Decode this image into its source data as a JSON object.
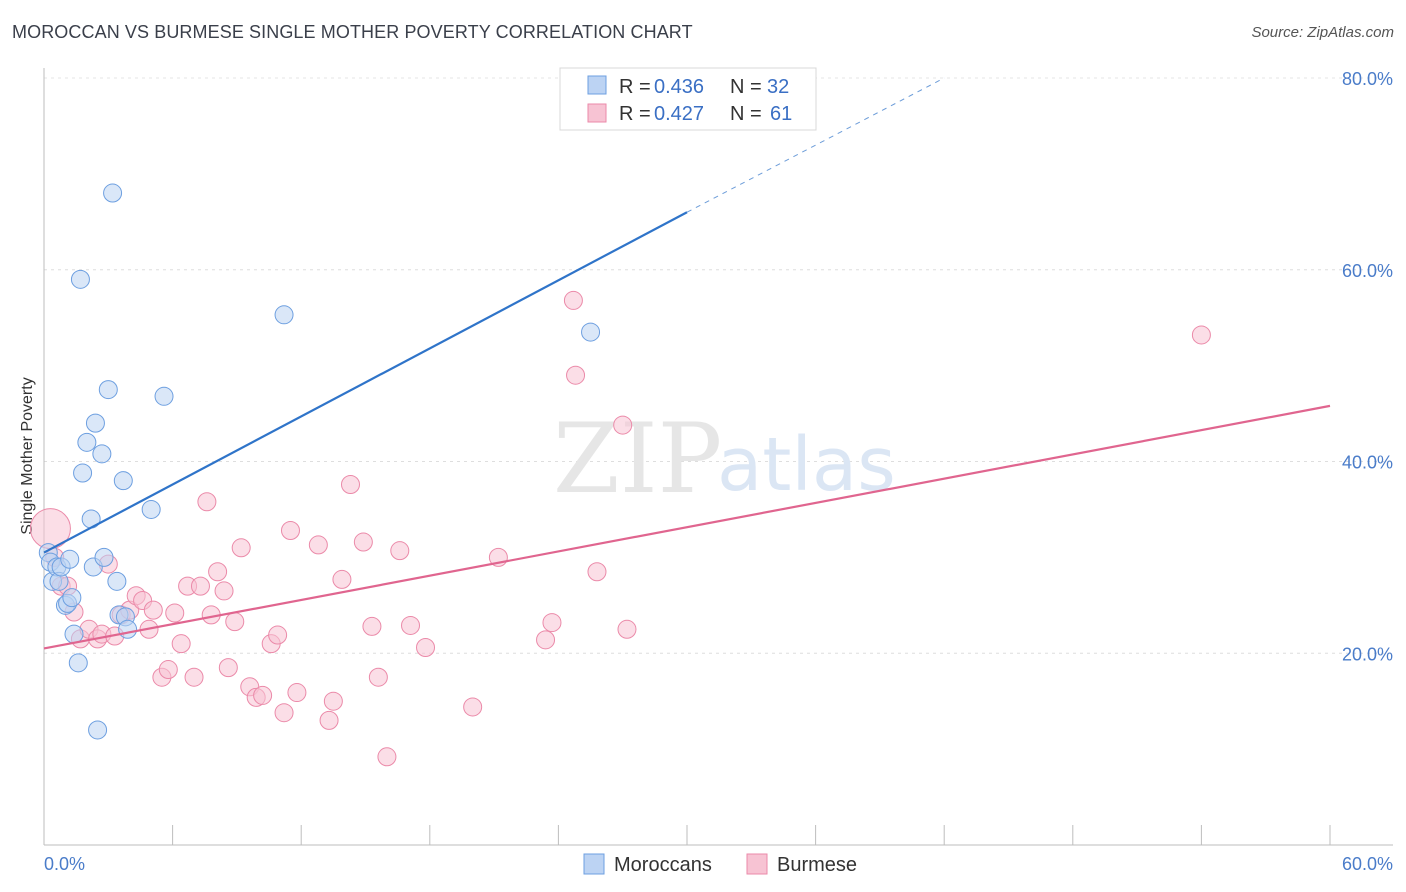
{
  "title": "MOROCCAN VS BURMESE SINGLE MOTHER POVERTY CORRELATION CHART",
  "source": "Source: ZipAtlas.com",
  "watermark": {
    "zip": "ZIP",
    "atlas": "atlas"
  },
  "colors": {
    "moroccans": "#6d9fe0",
    "moroccans_fill": "#bcd3f3",
    "moroccans_line": "#2f74c9",
    "burmese": "#eb8aa9",
    "burmese_fill": "#f7c3d3",
    "burmese_line": "#e0658f"
  },
  "legend": {
    "rows": [
      {
        "r_label": "R = ",
        "r_value": "0.436",
        "n_label": "N = ",
        "n_value": "32"
      },
      {
        "r_label": "R = ",
        "r_value": "0.427",
        "n_label": "N = ",
        "n_value": "61"
      }
    ]
  },
  "chart_data": {
    "type": "scatter",
    "title": "MOROCCAN VS BURMESE SINGLE MOTHER POVERTY CORRELATION CHART",
    "xlabel": "",
    "ylabel": "Single Mother Poverty",
    "xlim": [
      0,
      60
    ],
    "ylim": [
      0,
      80
    ],
    "x_tick_labels": [
      "0.0%",
      "60.0%"
    ],
    "y_ticks": [
      20,
      40,
      60,
      80
    ],
    "y_tick_labels": [
      "20.0%",
      "40.0%",
      "60.0%",
      "80.0%"
    ],
    "grid": true,
    "legend_position": "top-center",
    "series": [
      {
        "name": "Moroccans",
        "r": 0.436,
        "n": 32,
        "trend": {
          "x1": 0,
          "y1": 30.5,
          "x2": 30,
          "y2": 66,
          "dashed_to_x": 42,
          "dashed_to_y": 80
        },
        "points": [
          [
            0.2,
            30.5
          ],
          [
            0.3,
            29.5
          ],
          [
            0.4,
            27.5
          ],
          [
            0.6,
            29.0
          ],
          [
            0.7,
            27.5
          ],
          [
            0.8,
            29.0
          ],
          [
            1.0,
            25.0
          ],
          [
            1.1,
            25.2
          ],
          [
            1.2,
            29.8
          ],
          [
            1.3,
            25.8
          ],
          [
            1.4,
            22.0
          ],
          [
            1.6,
            19.0
          ],
          [
            1.7,
            59.0
          ],
          [
            1.8,
            38.8
          ],
          [
            2.0,
            42.0
          ],
          [
            2.2,
            34.0
          ],
          [
            2.3,
            29.0
          ],
          [
            2.4,
            44.0
          ],
          [
            2.5,
            12.0
          ],
          [
            2.7,
            40.8
          ],
          [
            2.8,
            30.0
          ],
          [
            3.0,
            47.5
          ],
          [
            3.2,
            68.0
          ],
          [
            3.4,
            27.5
          ],
          [
            3.5,
            24.0
          ],
          [
            3.7,
            38.0
          ],
          [
            3.8,
            23.8
          ],
          [
            3.9,
            22.5
          ],
          [
            5.0,
            35.0
          ],
          [
            5.6,
            46.8
          ],
          [
            11.2,
            55.3
          ],
          [
            25.5,
            53.5
          ]
        ]
      },
      {
        "name": "Burmese",
        "r": 0.427,
        "n": 61,
        "trend": {
          "x1": 0,
          "y1": 20.5,
          "x2": 60,
          "y2": 45.8
        },
        "points": [
          [
            0.3,
            33.0
          ],
          [
            0.5,
            30.0
          ],
          [
            0.8,
            27.0
          ],
          [
            1.1,
            27.0
          ],
          [
            1.4,
            24.3
          ],
          [
            1.7,
            21.5
          ],
          [
            2.1,
            22.5
          ],
          [
            2.5,
            21.5
          ],
          [
            2.7,
            22.0
          ],
          [
            3.0,
            29.3
          ],
          [
            3.3,
            21.8
          ],
          [
            3.6,
            24.0
          ],
          [
            4.0,
            24.5
          ],
          [
            4.3,
            26.0
          ],
          [
            4.6,
            25.5
          ],
          [
            4.9,
            22.5
          ],
          [
            5.1,
            24.5
          ],
          [
            5.5,
            17.5
          ],
          [
            5.8,
            18.3
          ],
          [
            6.1,
            24.2
          ],
          [
            6.4,
            21.0
          ],
          [
            6.7,
            27.0
          ],
          [
            7.0,
            17.5
          ],
          [
            7.3,
            27.0
          ],
          [
            7.6,
            35.8
          ],
          [
            7.8,
            24.0
          ],
          [
            8.1,
            28.5
          ],
          [
            8.4,
            26.5
          ],
          [
            8.6,
            18.5
          ],
          [
            8.9,
            23.3
          ],
          [
            9.2,
            31.0
          ],
          [
            9.6,
            16.5
          ],
          [
            9.9,
            15.4
          ],
          [
            10.2,
            15.6
          ],
          [
            10.6,
            21.0
          ],
          [
            10.9,
            21.9
          ],
          [
            11.2,
            13.8
          ],
          [
            11.5,
            32.8
          ],
          [
            11.8,
            15.9
          ],
          [
            12.8,
            31.3
          ],
          [
            13.3,
            13.0
          ],
          [
            13.5,
            15.0
          ],
          [
            13.9,
            27.7
          ],
          [
            14.3,
            37.6
          ],
          [
            14.9,
            31.6
          ],
          [
            15.3,
            22.8
          ],
          [
            15.6,
            17.5
          ],
          [
            16.0,
            9.2
          ],
          [
            16.6,
            30.7
          ],
          [
            17.1,
            22.9
          ],
          [
            17.8,
            20.6
          ],
          [
            20.0,
            14.4
          ],
          [
            21.2,
            30.0
          ],
          [
            23.4,
            21.4
          ],
          [
            23.7,
            23.2
          ],
          [
            24.7,
            56.8
          ],
          [
            24.8,
            49.0
          ],
          [
            25.8,
            28.5
          ],
          [
            27.0,
            43.8
          ],
          [
            27.2,
            22.5
          ],
          [
            54.0,
            53.2
          ]
        ]
      }
    ]
  }
}
